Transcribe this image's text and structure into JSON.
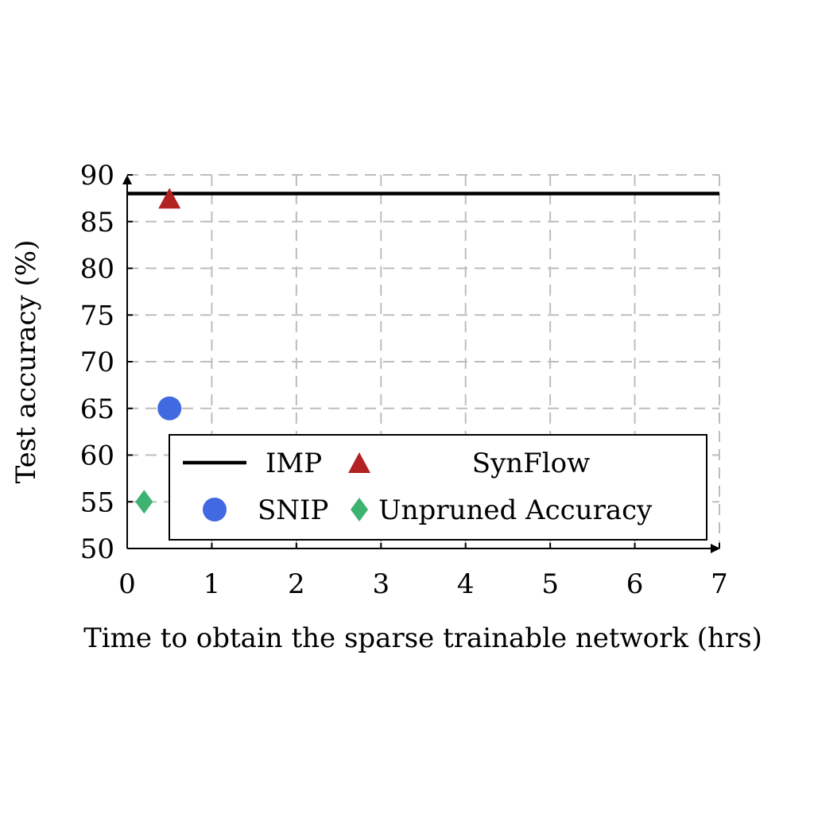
{
  "chart_data": {
    "type": "scatter",
    "title": "",
    "xlabel": "Time to obtain the sparse trainable network (hrs)",
    "ylabel": "Test accuracy (%)",
    "xlim": [
      0,
      7
    ],
    "ylim": [
      50,
      90
    ],
    "x_ticks": [
      0,
      1,
      2,
      3,
      4,
      5,
      6,
      7
    ],
    "y_ticks": [
      50,
      55,
      60,
      65,
      70,
      75,
      80,
      85,
      90
    ],
    "grid": true,
    "legend_position": "bottom-right",
    "series": [
      {
        "name": "IMP",
        "kind": "line",
        "color": "#000000",
        "x": [
          0,
          7
        ],
        "y": [
          88,
          88
        ]
      },
      {
        "name": "SynFlow",
        "kind": "marker",
        "marker": "triangle",
        "color": "#b22222",
        "x": [
          0.5
        ],
        "y": [
          87.5
        ]
      },
      {
        "name": "SNIP",
        "kind": "marker",
        "marker": "circle",
        "color": "#4169e1",
        "x": [
          0.5
        ],
        "y": [
          65
        ]
      },
      {
        "name": "Unpruned Accuracy",
        "kind": "marker",
        "marker": "diamond",
        "color": "#3cb371",
        "x": [
          0.2
        ],
        "y": [
          55
        ]
      }
    ]
  }
}
